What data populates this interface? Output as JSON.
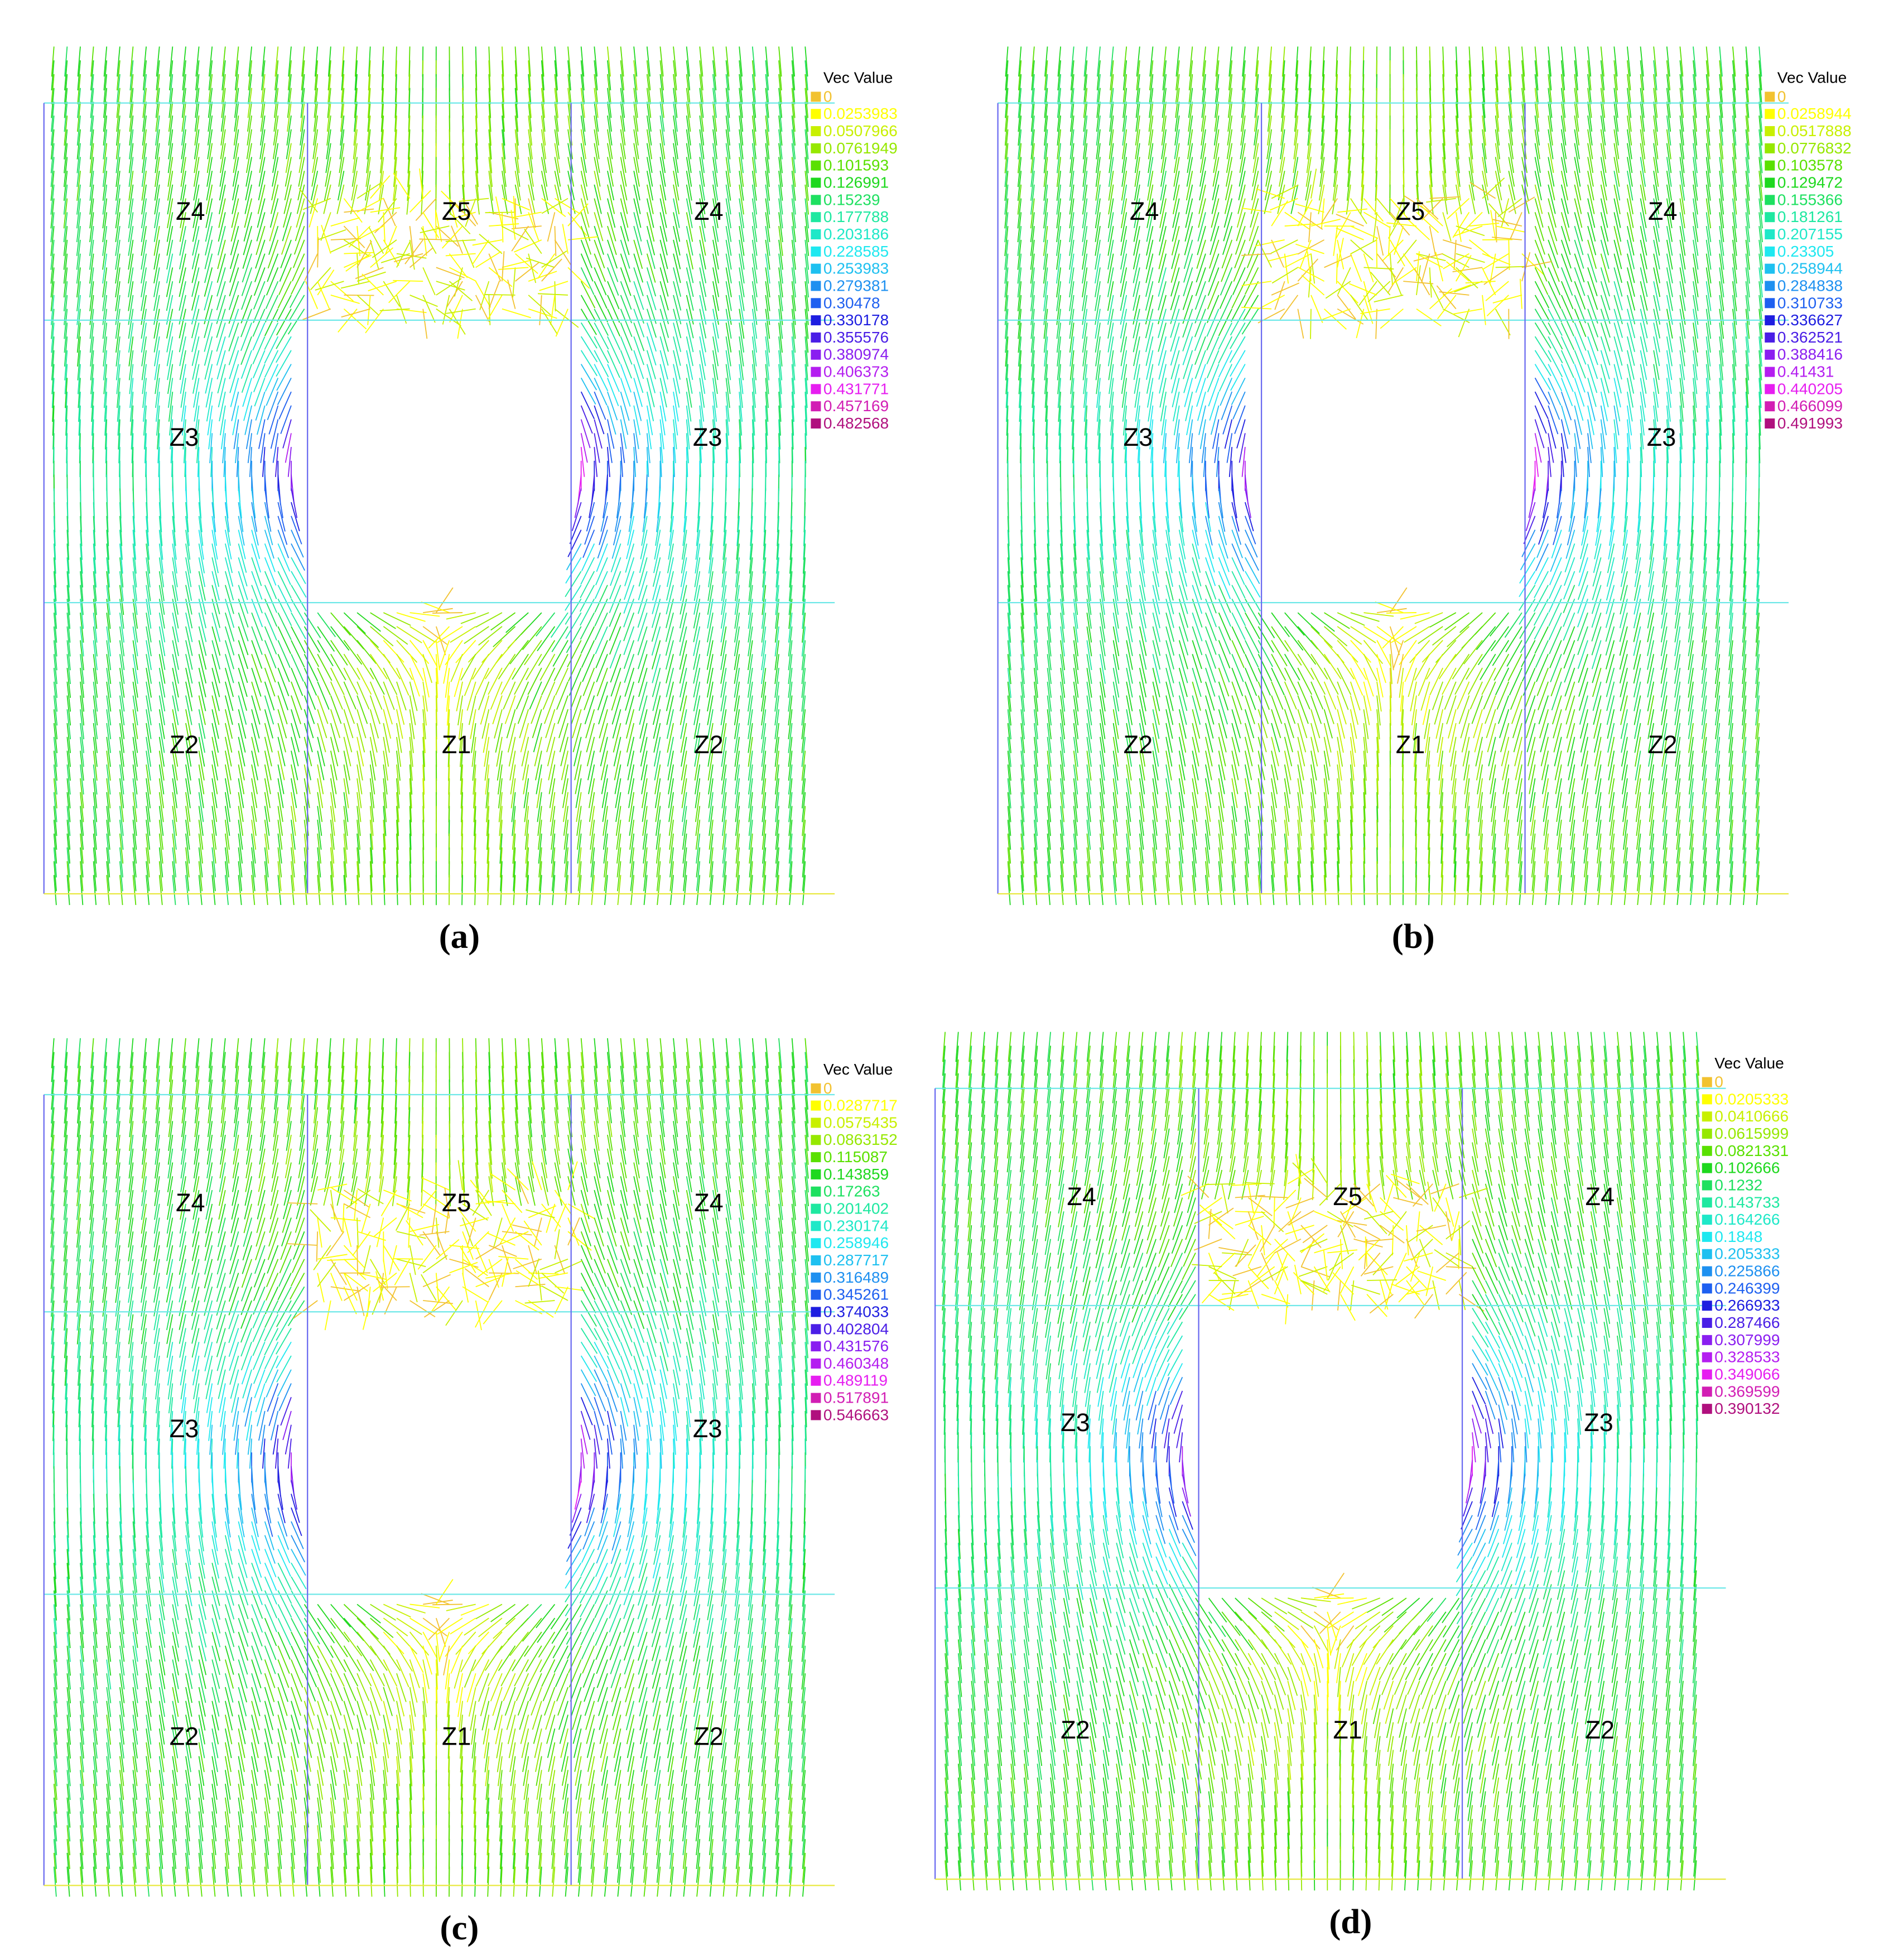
{
  "legend_colors": [
    "#f2c230",
    "#ffff00",
    "#c8f000",
    "#96e800",
    "#5ae000",
    "#1ed81e",
    "#1ee060",
    "#1ee8a0",
    "#1ee8c8",
    "#1ee8f0",
    "#1ec0f0",
    "#1e90f0",
    "#1e60f0",
    "#1e1ee0",
    "#4a1ee6",
    "#8a1ef0",
    "#b41ef0",
    "#e61ef0",
    "#d21eb4",
    "#b0107e"
  ],
  "panels": [
    {
      "caption": "(a)",
      "legend": {
        "title": "Vec Value",
        "values": [
          0,
          0.0253983,
          0.0507966,
          0.0761949,
          0.101593,
          0.126991,
          0.15239,
          0.177788,
          0.203186,
          0.228585,
          0.253983,
          0.279381,
          0.30478,
          0.330178,
          0.355576,
          0.380974,
          0.406373,
          0.431771,
          0.457169,
          0.482568
        ]
      },
      "zones": [
        "Z4",
        "Z5",
        "Z4",
        "Z3",
        "Z3",
        "Z2",
        "Z1",
        "Z2"
      ]
    },
    {
      "caption": "(b)",
      "legend": {
        "title": "Vec Value",
        "values": [
          0,
          0.0258944,
          0.0517888,
          0.0776832,
          0.103578,
          0.129472,
          0.155366,
          0.181261,
          0.207155,
          0.23305,
          0.258944,
          0.284838,
          0.310733,
          0.336627,
          0.362521,
          0.388416,
          0.41431,
          0.440205,
          0.466099,
          0.491993
        ]
      },
      "zones": [
        "Z4",
        "Z5",
        "Z4",
        "Z3",
        "Z3",
        "Z2",
        "Z1",
        "Z2"
      ]
    },
    {
      "caption": "(c)",
      "legend": {
        "title": "Vec Value",
        "values": [
          0,
          0.0287717,
          0.0575435,
          0.0863152,
          0.115087,
          0.143859,
          0.17263,
          0.201402,
          0.230174,
          0.258946,
          0.287717,
          0.316489,
          0.345261,
          0.374033,
          0.402804,
          0.431576,
          0.460348,
          0.489119,
          0.517891,
          0.546663
        ]
      },
      "zones": [
        "Z4",
        "Z5",
        "Z4",
        "Z3",
        "Z3",
        "Z2",
        "Z1",
        "Z2"
      ]
    },
    {
      "caption": "(d)",
      "legend": {
        "title": "Vec Value",
        "values": [
          0,
          0.0205333,
          0.0410666,
          0.0615999,
          0.0821331,
          0.102666,
          0.1232,
          0.143733,
          0.164266,
          0.1848,
          0.205333,
          0.225866,
          0.246399,
          0.266933,
          0.287466,
          0.307999,
          0.328533,
          0.349066,
          0.369599,
          0.390132
        ]
      },
      "zones": [
        "Z4",
        "Z5",
        "Z4",
        "Z3",
        "Z3",
        "Z2",
        "Z1",
        "Z2"
      ]
    }
  ]
}
